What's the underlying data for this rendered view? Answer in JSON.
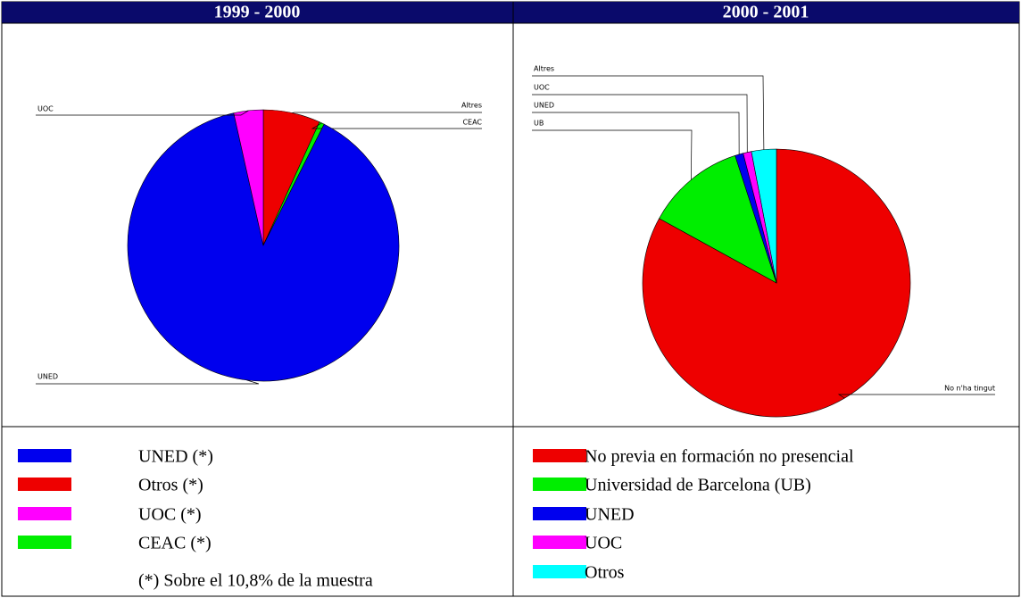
{
  "chart_data": [
    {
      "type": "pie",
      "title": "1999 - 2000",
      "categories": [
        "UNED (*)",
        "Otros (*)",
        "UOC (*)",
        "CEAC (*)"
      ],
      "slice_labels": [
        "UNED",
        "Altres",
        "UOC",
        "CEAC"
      ],
      "values": [
        89.1,
        6.8,
        3.5,
        0.6
      ],
      "colors": [
        "#0000ee",
        "#ee0000",
        "#ff00ff",
        "#00ee00"
      ],
      "slice_order": [
        1,
        3,
        0,
        2
      ],
      "note": "(*) Sobre el 10,8% de la muestra"
    },
    {
      "type": "pie",
      "title": "2000 - 2001",
      "categories": [
        "No previa en formación no presencial",
        "Universidad de Barcelona  (UB)",
        "UNED",
        "UOC",
        "Otros"
      ],
      "slice_labels": [
        "No n'ha tingut",
        "UB",
        "UNED",
        "UOC",
        "Altres"
      ],
      "values": [
        83,
        12,
        1,
        1,
        3
      ],
      "colors": [
        "#ee0000",
        "#00ee00",
        "#0000ee",
        "#ff00ff",
        "#00ffff"
      ],
      "slice_order": [
        0,
        1,
        2,
        3,
        4
      ]
    }
  ]
}
